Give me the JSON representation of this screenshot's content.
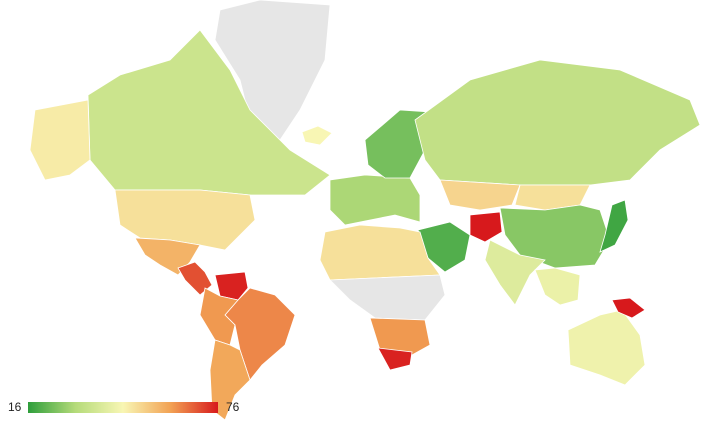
{
  "map": {
    "legend": {
      "min": 16,
      "max": 76,
      "colors": [
        "#2e9e3b",
        "#b5db7a",
        "#f8f6b4",
        "#f2a254",
        "#d7191c"
      ]
    },
    "no_data_color": "#e6e6e6",
    "regions": [
      {
        "value": null
      },
      {
        "value": 36
      },
      {
        "value": 48
      },
      {
        "value": 50
      },
      {
        "value": 58
      },
      {
        "value": 70
      },
      {
        "value": 75
      },
      {
        "value": 64
      },
      {
        "value": 62
      },
      {
        "value": 60
      },
      {
        "value": 30
      },
      {
        "value": 24
      },
      {
        "value": 34
      },
      {
        "value": 52
      },
      {
        "value": 50
      },
      {
        "value": 26
      },
      {
        "value": 18
      },
      {
        "value": 20
      },
      {
        "value": 76
      },
      {
        "value": 40
      },
      {
        "value": 43
      },
      {
        "value": 50
      },
      {
        "value": null
      },
      {
        "value": 62
      },
      {
        "value": 75
      },
      {
        "value": 44
      },
      {
        "value": 76
      },
      {
        "value": 46
      }
    ]
  }
}
